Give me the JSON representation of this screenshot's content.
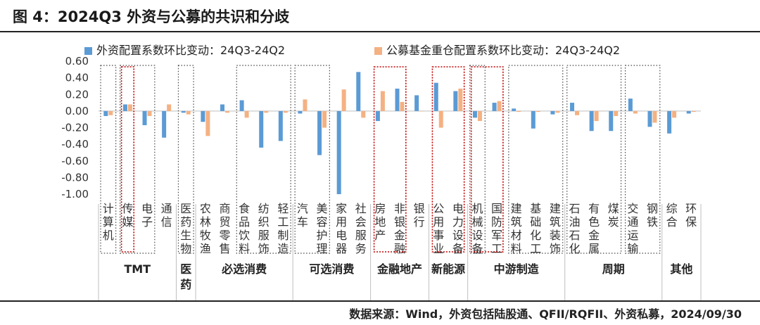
{
  "title": "图 4：2024Q3 外资与公募的共识和分歧",
  "source": "数据来源：Wind，外资包括陆股通、QFII/RQFII、外资私募，2024/09/30",
  "colors": {
    "foreign": "#5b9bd5",
    "fund": "#f4b183",
    "grid": "#d9d9d9",
    "dotted": "#444444",
    "highlight": "#c00000"
  },
  "chart_data": {
    "type": "bar",
    "ylim": [
      -1.0,
      0.6
    ],
    "yticks": [
      "0.60",
      "0.40",
      "0.20",
      "0.00",
      "-0.20",
      "-0.40",
      "-0.60",
      "-0.80",
      "-1.00"
    ],
    "legend": [
      "外资配置系数环比变动：24Q3-24Q2",
      "公募基金重仓配置系数环比变动：24Q3-24Q2"
    ],
    "categories": [
      "计算机",
      "传媒",
      "电子",
      "通信",
      "医药生物",
      "农林牧渔",
      "商贸零售",
      "食品饮料",
      "纺织服饰",
      "轻工制造",
      "汽车",
      "美容护理",
      "家用电器",
      "社会服务",
      "房地产",
      "非银金融",
      "银行",
      "公用事业",
      "电力设备",
      "机械设备",
      "国防军工",
      "建筑材料",
      "基础化工",
      "建筑装饰",
      "石油石化",
      "有色金属",
      "煤炭",
      "交通运输",
      "钢铁",
      "综合",
      "环保"
    ],
    "series": [
      {
        "name": "外资配置系数环比变动：24Q3-24Q2",
        "values": [
          -0.06,
          0.08,
          -0.17,
          -0.32,
          -0.02,
          -0.13,
          0.08,
          0.13,
          -0.44,
          -0.36,
          -0.03,
          -0.53,
          -1.0,
          0.47,
          -0.12,
          0.27,
          0.19,
          0.34,
          0.24,
          -0.08,
          0.1,
          0.03,
          -0.21,
          -0.04,
          0.1,
          -0.24,
          -0.24,
          0.15,
          -0.19,
          -0.27,
          -0.03
        ]
      },
      {
        "name": "公募基金重仓配置系数环比变动：24Q3-24Q2",
        "values": [
          -0.05,
          0.08,
          -0.06,
          0.08,
          -0.04,
          -0.3,
          -0.02,
          -0.08,
          -0.02,
          -0.02,
          0.14,
          -0.2,
          0.26,
          -0.08,
          0.24,
          0.11,
          0.0,
          -0.2,
          0.27,
          -0.12,
          0.12,
          -0.01,
          -0.01,
          -0.02,
          -0.05,
          -0.12,
          -0.06,
          -0.03,
          -0.14,
          -0.08,
          -0.01
        ]
      }
    ],
    "groups": [
      {
        "label": "TMT",
        "start": 0,
        "end": 3
      },
      {
        "label": "医药",
        "start": 4,
        "end": 4
      },
      {
        "label": "必选消费",
        "start": 5,
        "end": 9
      },
      {
        "label": "可选消费",
        "start": 10,
        "end": 13
      },
      {
        "label": "金融地产",
        "start": 14,
        "end": 16
      },
      {
        "label": "新能源",
        "start": 17,
        "end": 18
      },
      {
        "label": "中游制造",
        "start": 19,
        "end": 23
      },
      {
        "label": "周期",
        "start": 24,
        "end": 28
      },
      {
        "label": "其他",
        "start": 29,
        "end": 30
      }
    ],
    "dotted_boxes": [
      {
        "start": 0,
        "end": 0,
        "style": "black"
      },
      {
        "start": 1,
        "end": 1,
        "style": "red"
      },
      {
        "start": 1,
        "end": 2,
        "style": "black"
      },
      {
        "start": 4,
        "end": 4,
        "style": "black"
      },
      {
        "start": 7,
        "end": 9,
        "style": "black"
      },
      {
        "start": 10,
        "end": 11,
        "style": "black"
      },
      {
        "start": 14,
        "end": 15,
        "style": "red"
      },
      {
        "start": 17,
        "end": 18,
        "style": "red"
      },
      {
        "start": 19,
        "end": 20,
        "style": "red"
      },
      {
        "start": 19,
        "end": 19,
        "style": "black"
      },
      {
        "start": 21,
        "end": 23,
        "style": "black"
      },
      {
        "start": 24,
        "end": 26,
        "style": "black"
      },
      {
        "start": 27,
        "end": 28,
        "style": "black"
      }
    ]
  }
}
